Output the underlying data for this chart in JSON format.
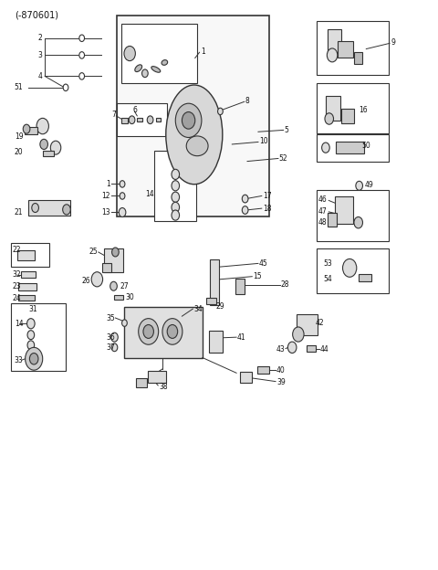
{
  "title": "(-870601)",
  "bg_color": "#ffffff",
  "line_color": "#333333",
  "text_color": "#111111",
  "fig_width": 4.8,
  "fig_height": 6.24,
  "dpi": 100
}
